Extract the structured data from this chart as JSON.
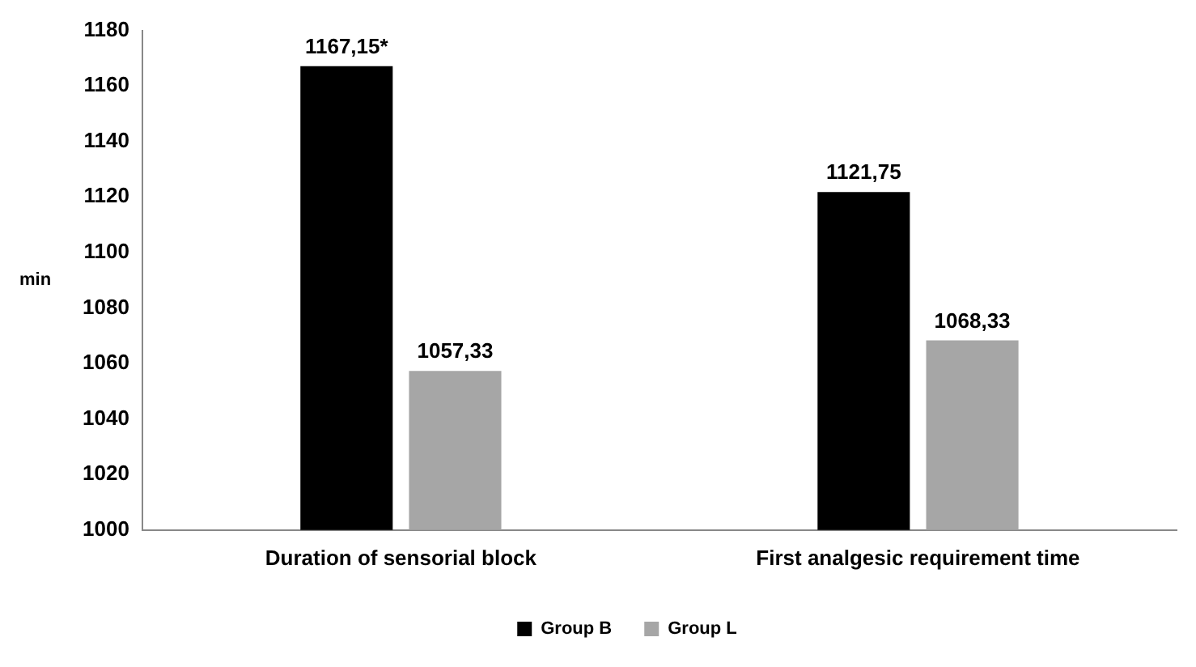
{
  "chart_data": {
    "type": "bar",
    "ylabel": "min",
    "categories": [
      "Duration of sensorial block",
      "First analgesic requirement time"
    ],
    "series": [
      {
        "name": "Group B",
        "color": "#000000",
        "values": [
          1167.15,
          1121.75
        ],
        "value_labels": [
          "1167,15*",
          "1121,75"
        ]
      },
      {
        "name": "Group L",
        "color": "#a6a6a6",
        "values": [
          1057.33,
          1068.33
        ],
        "value_labels": [
          "1057,33",
          "1068,33"
        ]
      }
    ],
    "ylim": [
      1000,
      1180
    ],
    "yticks": [
      1000,
      1020,
      1040,
      1060,
      1080,
      1100,
      1120,
      1140,
      1160,
      1180
    ],
    "grid": false,
    "legend": "bottom"
  }
}
